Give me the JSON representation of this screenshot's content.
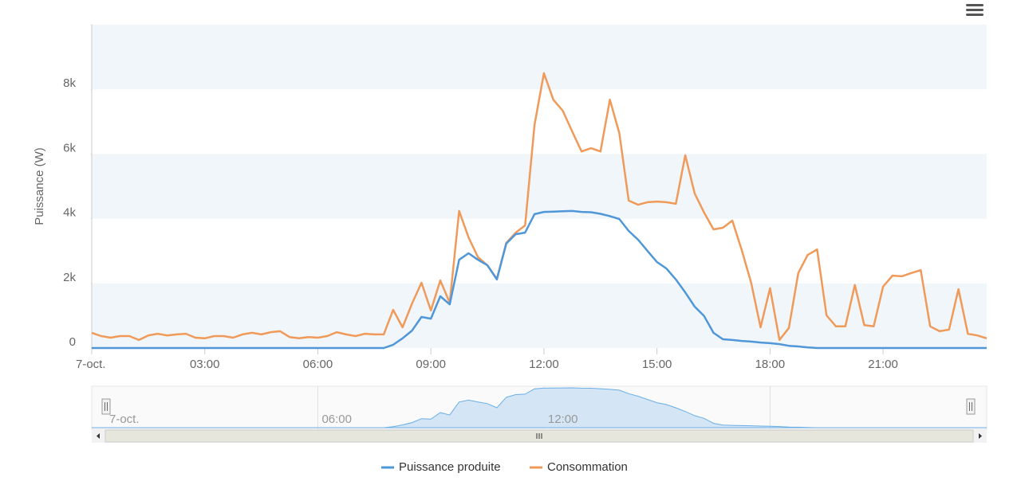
{
  "chart_data": {
    "type": "line",
    "y_label": "Puissance (W)",
    "x": [
      0,
      0.25,
      0.5,
      0.75,
      1,
      1.25,
      1.5,
      1.75,
      2,
      2.25,
      2.5,
      2.75,
      3,
      3.25,
      3.5,
      3.75,
      4,
      4.25,
      4.5,
      4.75,
      5,
      5.25,
      5.5,
      5.75,
      6,
      6.25,
      6.5,
      6.75,
      7,
      7.25,
      7.5,
      7.75,
      8,
      8.25,
      8.5,
      8.75,
      9,
      9.25,
      9.5,
      9.75,
      10,
      10.25,
      10.5,
      10.75,
      11,
      11.25,
      11.5,
      11.75,
      12,
      12.25,
      12.5,
      12.75,
      13,
      13.25,
      13.5,
      13.75,
      14,
      14.25,
      14.5,
      14.75,
      15,
      15.25,
      15.5,
      15.75,
      16,
      16.25,
      16.5,
      16.75,
      17,
      17.25,
      17.5,
      17.75,
      18,
      18.25,
      18.5,
      18.75,
      19,
      19.25,
      19.5,
      19.75,
      20,
      20.25,
      20.5,
      20.75,
      21,
      21.25,
      21.5,
      21.75,
      22,
      22.25,
      22.5,
      22.75,
      23,
      23.25,
      23.5,
      23.75
    ],
    "series": [
      {
        "name": "Puissance produite",
        "color": "#4f97d8",
        "values": [
          0,
          0,
          0,
          0,
          0,
          0,
          0,
          0,
          0,
          0,
          0,
          0,
          0,
          0,
          0,
          0,
          0,
          0,
          0,
          0,
          0,
          0,
          0,
          0,
          0,
          0,
          0,
          0,
          0,
          0,
          0,
          0,
          100,
          300,
          540,
          960,
          910,
          1600,
          1350,
          2730,
          2930,
          2730,
          2560,
          2120,
          3230,
          3520,
          3570,
          4140,
          4210,
          4220,
          4230,
          4240,
          4210,
          4200,
          4150,
          4080,
          3990,
          3620,
          3350,
          3000,
          2660,
          2460,
          2120,
          1720,
          1280,
          990,
          470,
          270,
          250,
          220,
          200,
          170,
          150,
          120,
          70,
          50,
          20,
          0,
          0,
          0,
          0,
          0,
          0,
          0,
          0,
          0,
          0,
          0,
          0,
          0,
          0,
          0,
          0,
          0,
          0,
          0
        ]
      },
      {
        "name": "Consommation",
        "color": "#f09a5a",
        "values": [
          470,
          370,
          320,
          370,
          370,
          250,
          390,
          440,
          390,
          420,
          440,
          320,
          300,
          370,
          370,
          320,
          420,
          470,
          420,
          490,
          520,
          340,
          300,
          340,
          320,
          370,
          490,
          420,
          370,
          440,
          420,
          420,
          1180,
          640,
          1380,
          2020,
          1160,
          2090,
          1400,
          4240,
          3420,
          2810,
          2560,
          2140,
          3250,
          3570,
          3790,
          6900,
          8500,
          7680,
          7340,
          6700,
          6080,
          6180,
          6080,
          7680,
          6650,
          4560,
          4430,
          4510,
          4530,
          4510,
          4460,
          5960,
          4780,
          4190,
          3670,
          3720,
          3940,
          3030,
          2020,
          640,
          1850,
          250,
          620,
          2320,
          2880,
          3050,
          1010,
          670,
          670,
          1950,
          710,
          670,
          1900,
          2240,
          2220,
          2320,
          2410,
          670,
          520,
          570,
          1820,
          440,
          390,
          300
        ]
      }
    ],
    "xlim": [
      0,
      23.75
    ],
    "xticks": [
      {
        "value": 0,
        "label": "7-oct."
      },
      {
        "value": 3,
        "label": "03:00"
      },
      {
        "value": 6,
        "label": "06:00"
      },
      {
        "value": 9,
        "label": "09:00"
      },
      {
        "value": 12,
        "label": "12:00"
      },
      {
        "value": 15,
        "label": "15:00"
      },
      {
        "value": 18,
        "label": "18:00"
      },
      {
        "value": 21,
        "label": "21:00"
      }
    ],
    "ylim": [
      0,
      10000
    ],
    "yticks": [
      0,
      {
        "value": 2000,
        "label": "2k"
      },
      {
        "value": 4000,
        "label": "4k"
      },
      {
        "value": 6000,
        "label": "6k"
      },
      {
        "value": 8000,
        "label": "8k"
      },
      {
        "value": 10000,
        "label": ""
      }
    ],
    "band_color": "#f1f6fb",
    "legend": "bottom",
    "navigator": true
  }
}
